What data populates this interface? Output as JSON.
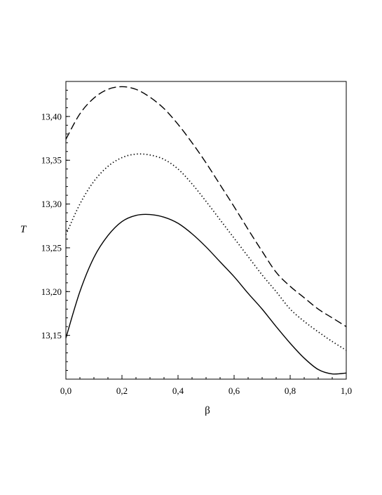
{
  "chart_data": {
    "type": "line",
    "title": "",
    "xlabel": "β",
    "ylabel": "T",
    "xlim": [
      0.0,
      1.0
    ],
    "ylim": [
      13.1,
      13.44
    ],
    "x_ticks": [
      "0,0",
      "0,2",
      "0,4",
      "0,6",
      "0,8",
      "1,0"
    ],
    "x_tick_values": [
      0.0,
      0.2,
      0.4,
      0.6,
      0.8,
      1.0
    ],
    "y_ticks": [
      "13,15",
      "13,20",
      "13,25",
      "13,30",
      "13,35",
      "13,40"
    ],
    "y_tick_values": [
      13.15,
      13.2,
      13.25,
      13.3,
      13.35,
      13.4
    ],
    "grid": false,
    "legend": "none",
    "x": [
      0.0,
      0.05,
      0.1,
      0.15,
      0.2,
      0.25,
      0.3,
      0.35,
      0.4,
      0.45,
      0.5,
      0.55,
      0.6,
      0.65,
      0.7,
      0.75,
      0.8,
      0.85,
      0.9,
      0.95,
      1.0
    ],
    "series": [
      {
        "style": "dashed",
        "color": "#000000",
        "values": [
          13.374,
          13.403,
          13.421,
          13.431,
          13.434,
          13.431,
          13.422,
          13.409,
          13.391,
          13.37,
          13.347,
          13.322,
          13.297,
          13.271,
          13.246,
          13.222,
          13.206,
          13.193,
          13.18,
          13.17,
          13.16
        ]
      },
      {
        "style": "dotted",
        "color": "#000000",
        "values": [
          13.265,
          13.3,
          13.326,
          13.343,
          13.353,
          13.357,
          13.356,
          13.351,
          13.34,
          13.323,
          13.303,
          13.282,
          13.261,
          13.24,
          13.219,
          13.2,
          13.18,
          13.166,
          13.154,
          13.143,
          13.133
        ]
      },
      {
        "style": "solid",
        "color": "#000000",
        "values": [
          13.147,
          13.2,
          13.239,
          13.264,
          13.28,
          13.287,
          13.288,
          13.285,
          13.278,
          13.266,
          13.251,
          13.234,
          13.217,
          13.198,
          13.18,
          13.16,
          13.141,
          13.124,
          13.111,
          13.106,
          13.107
        ]
      }
    ]
  }
}
